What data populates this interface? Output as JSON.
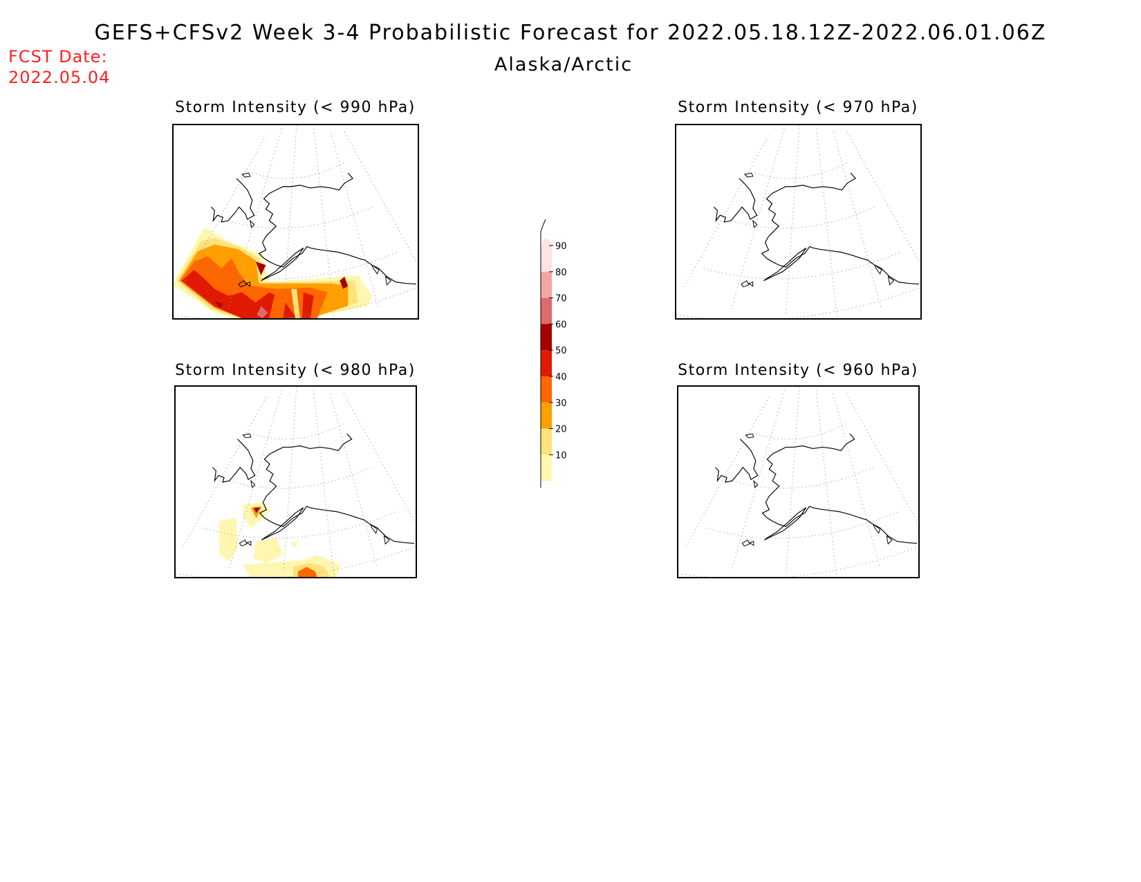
{
  "header": {
    "title": "GEFS+CFSv2 Week 3-4 Probabilistic Forecast for 2022.05.18.12Z-2022.06.01.06Z",
    "subtitle": "Alaska/Arctic",
    "fcst_label": "FCST Date:",
    "fcst_date": "2022.05.04"
  },
  "panels": [
    {
      "id": "p990",
      "title": "Storm Intensity (< 990 hPa)",
      "coverage": "widespread"
    },
    {
      "id": "p970",
      "title": "Storm Intensity (< 970 hPa)",
      "coverage": "none"
    },
    {
      "id": "p980",
      "title": "Storm Intensity (< 980 hPa)",
      "coverage": "scattered"
    },
    {
      "id": "p960",
      "title": "Storm Intensity (< 960 hPa)",
      "coverage": "none"
    }
  ],
  "legend": {
    "levels": [
      "10",
      "20",
      "30",
      "40",
      "50",
      "60",
      "70",
      "80",
      "90"
    ],
    "colors": {
      "10-20": "#fff7b0",
      "20-30": "#ffe27a",
      "30-40": "#ff9f00",
      "40-50": "#ff6600",
      "50-60": "#e01a00",
      "60-70": "#a50000",
      "70-80": "#dd6b6b",
      "80-90": "#f2a6a6",
      "90+": "#fde3e3"
    }
  }
}
